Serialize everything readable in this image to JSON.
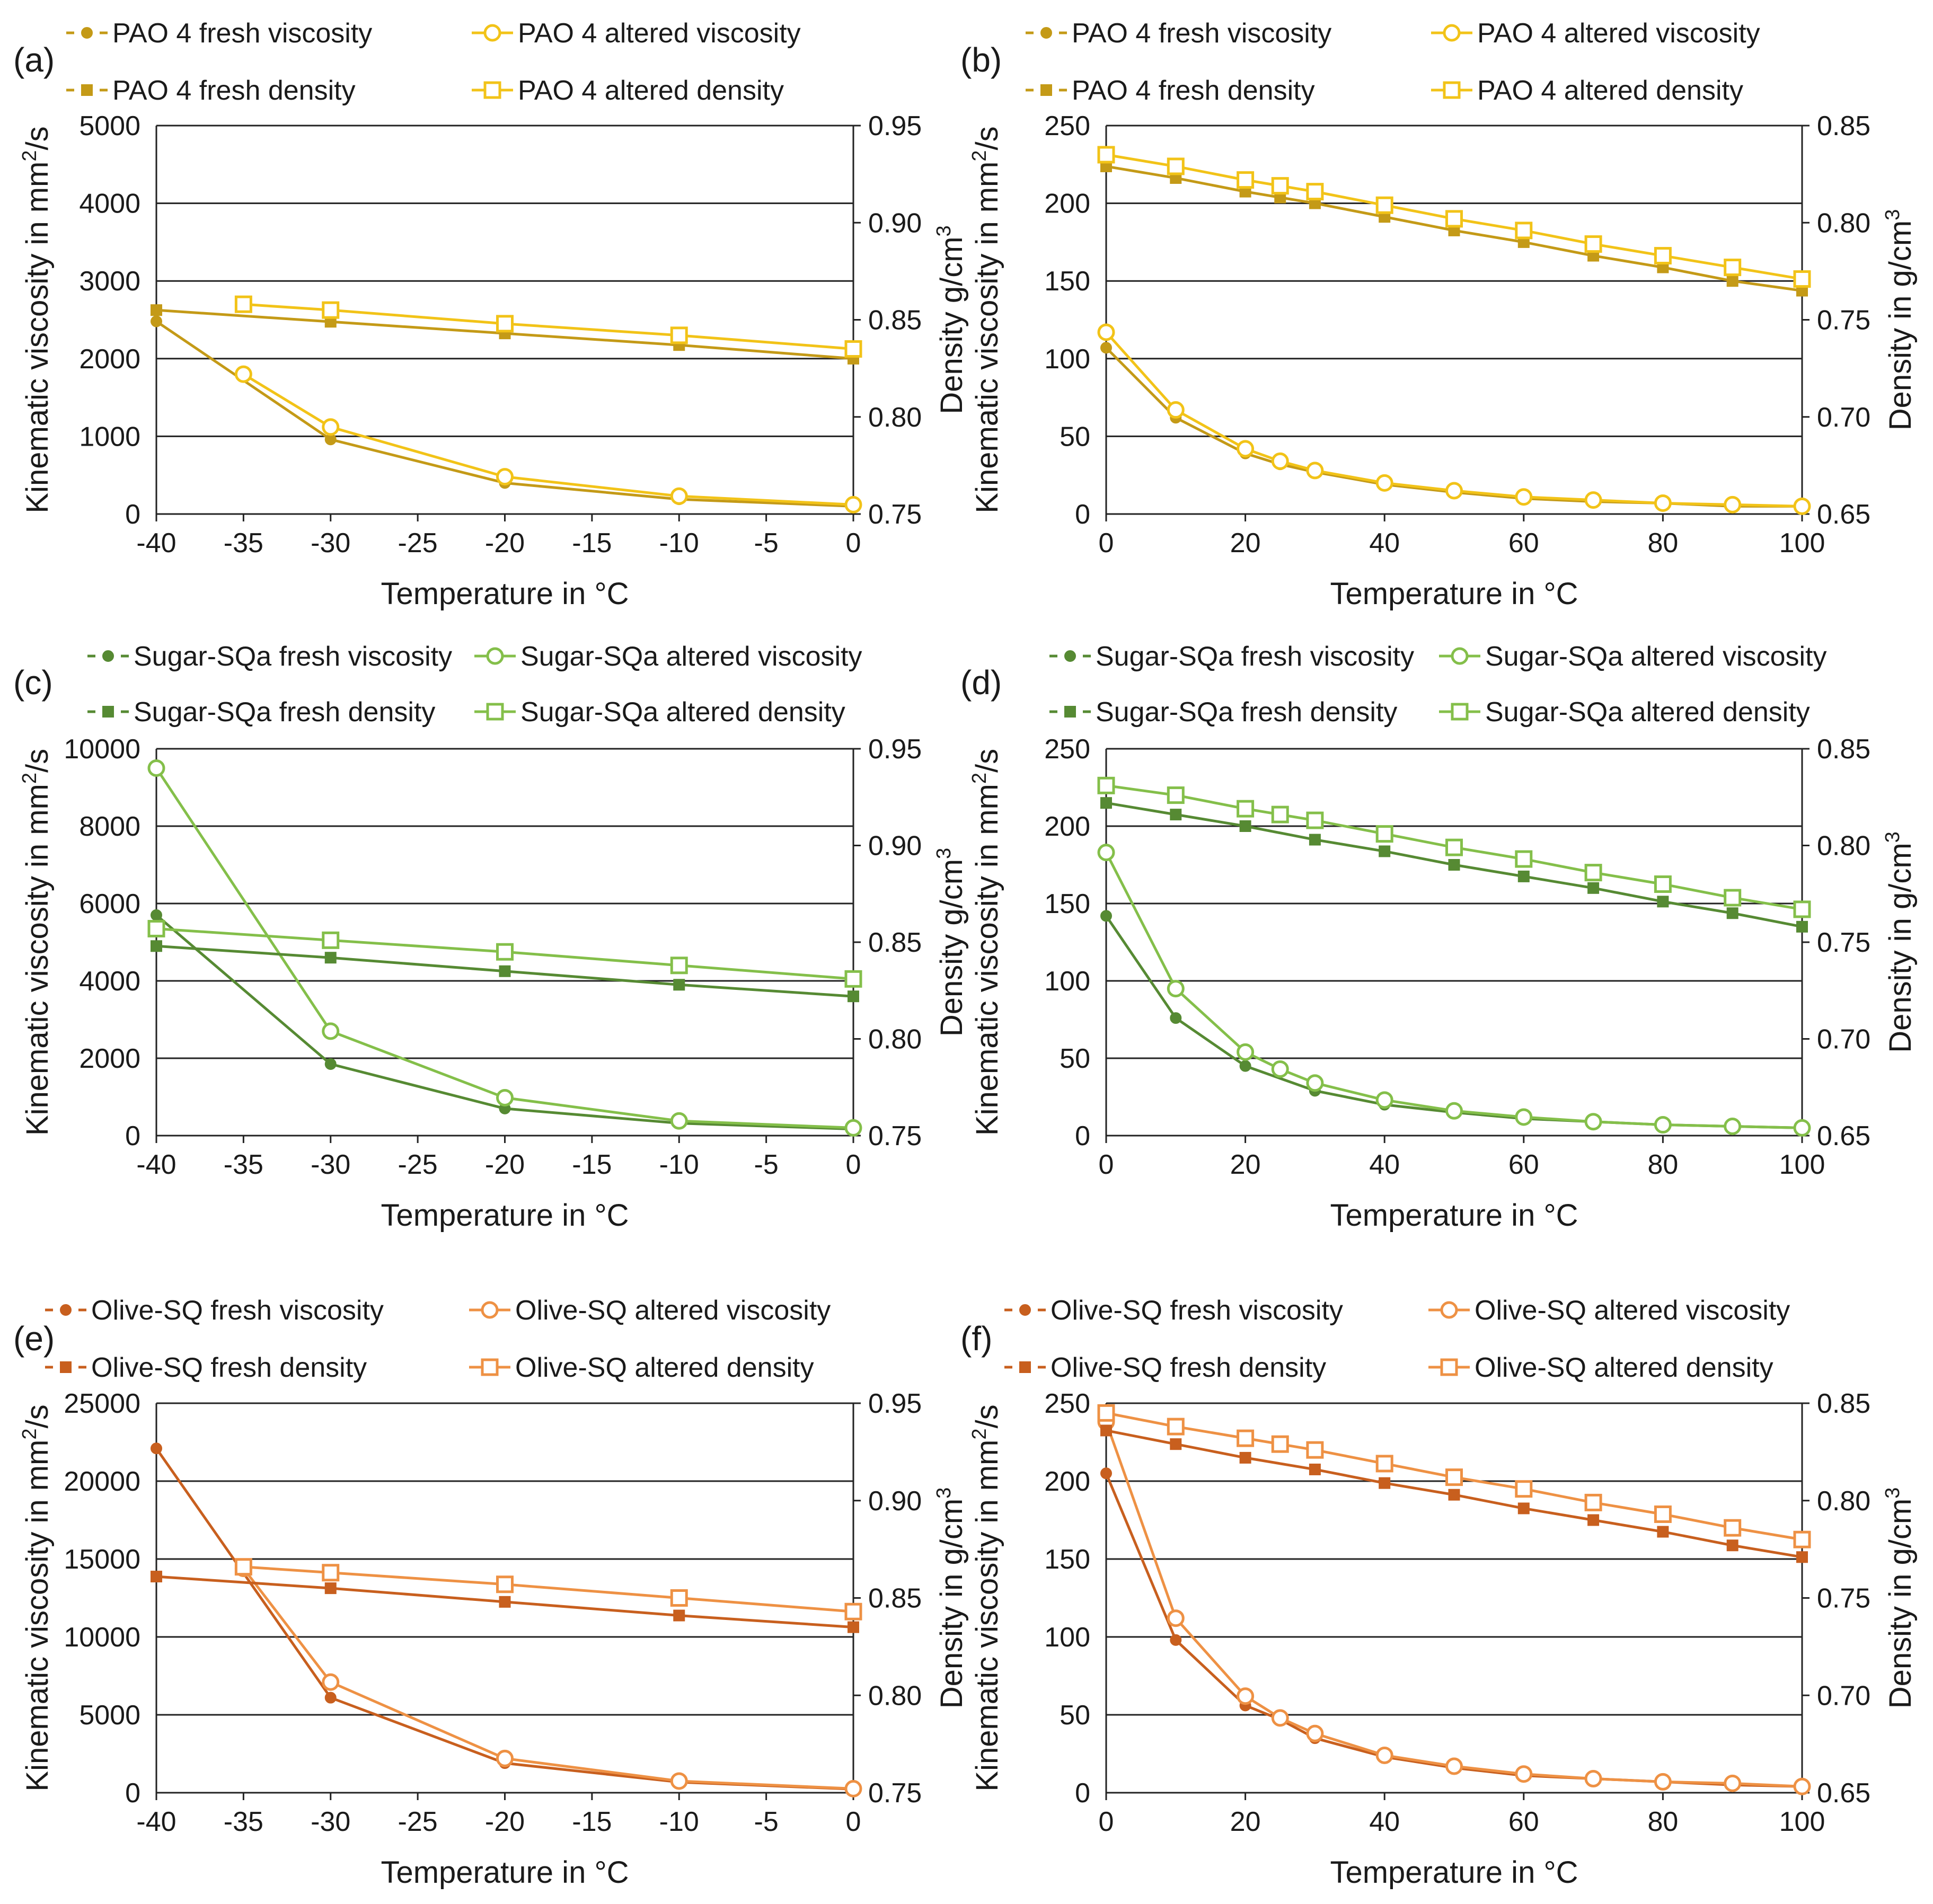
{
  "chart_data": [
    {
      "panel_label": "(a)",
      "type": "line",
      "colors": {
        "fresh": "#C49A17",
        "altered": "#F2C318"
      },
      "xlabel": "Temperature in °C",
      "ylabel": "Kinematic viscosity in mm²/s",
      "ylabel_main": "Kinematic viscosity in mm",
      "ylabel_sup": "2",
      "ylabel_tail": "/s",
      "y2label": "Density g/cm³",
      "y2label_main": "Density g/cm",
      "y2label_sup": "3",
      "xlim": [
        -40,
        0
      ],
      "ylim": [
        0,
        5000
      ],
      "y2lim": [
        0.75,
        0.95
      ],
      "xticks": [
        "-40",
        "-35",
        "-30",
        "-25",
        "-20",
        "-15",
        "-10",
        "-5",
        "0"
      ],
      "yticks": [
        "0",
        "1000",
        "2000",
        "3000",
        "4000",
        "5000"
      ],
      "y2ticks": [
        "0.75",
        "0.80",
        "0.85",
        "0.90",
        "0.95"
      ],
      "series": [
        {
          "name": "PAO 4 fresh viscosity",
          "axis": "left",
          "marker": "dot",
          "style": "fresh",
          "x": [
            -40,
            -30,
            -20,
            -10,
            0
          ],
          "values": [
            2480,
            960,
            400,
            190,
            100
          ]
        },
        {
          "name": "PAO 4 altered viscosity",
          "axis": "left",
          "marker": "circle",
          "style": "altered",
          "x": [
            -35,
            -30,
            -20,
            -10,
            0
          ],
          "values": [
            1800,
            1120,
            480,
            230,
            120
          ]
        },
        {
          "name": "PAO 4 fresh density",
          "axis": "right",
          "marker": "square-filled",
          "style": "fresh",
          "x": [
            -40,
            -30,
            -20,
            -10,
            0
          ],
          "values": [
            0.855,
            0.849,
            0.843,
            0.837,
            0.83
          ]
        },
        {
          "name": "PAO 4 altered density",
          "axis": "right",
          "marker": "square-open",
          "style": "altered",
          "x": [
            -35,
            -30,
            -20,
            -10,
            0
          ],
          "values": [
            0.858,
            0.855,
            0.848,
            0.842,
            0.835
          ]
        }
      ]
    },
    {
      "panel_label": "(b)",
      "type": "line",
      "colors": {
        "fresh": "#C49A17",
        "altered": "#F2C318"
      },
      "xlabel": "Temperature in °C",
      "ylabel": "Kinematic viscosity in mm²/s",
      "ylabel_main": "Kinematic viscosity in mm",
      "ylabel_sup": "2",
      "ylabel_tail": "/s",
      "y2label": "Density in g/cm³",
      "y2label_main": "Density in g/cm",
      "y2label_sup": "3",
      "xlim": [
        0,
        100
      ],
      "ylim": [
        0,
        250
      ],
      "y2lim": [
        0.65,
        0.85
      ],
      "xticks": [
        "0",
        "20",
        "40",
        "60",
        "80",
        "100"
      ],
      "yticks": [
        "0",
        "50",
        "100",
        "150",
        "200",
        "250"
      ],
      "y2ticks": [
        "0.65",
        "0.70",
        "0.75",
        "0.80",
        "0.85"
      ],
      "series": [
        {
          "name": "PAO 4 fresh viscosity",
          "axis": "left",
          "marker": "dot",
          "style": "fresh",
          "x": [
            0,
            10,
            20,
            25,
            30,
            40,
            50,
            60,
            70,
            80,
            90,
            100
          ],
          "values": [
            107,
            62,
            39,
            32,
            27,
            19,
            14,
            10,
            8,
            7,
            5,
            5
          ]
        },
        {
          "name": "PAO 4 altered viscosity",
          "axis": "left",
          "marker": "circle",
          "style": "altered",
          "x": [
            0,
            10,
            20,
            25,
            30,
            40,
            50,
            60,
            70,
            80,
            90,
            100
          ],
          "values": [
            117,
            67,
            42,
            34,
            28,
            20,
            15,
            11,
            9,
            7,
            6,
            5
          ]
        },
        {
          "name": "PAO 4 fresh density",
          "axis": "right",
          "marker": "square-filled",
          "style": "fresh",
          "x": [
            0,
            10,
            20,
            25,
            30,
            40,
            50,
            60,
            70,
            80,
            90,
            100
          ],
          "values": [
            0.829,
            0.823,
            0.816,
            0.813,
            0.81,
            0.803,
            0.796,
            0.79,
            0.783,
            0.777,
            0.77,
            0.765
          ]
        },
        {
          "name": "PAO 4 altered density",
          "axis": "right",
          "marker": "square-open",
          "style": "altered",
          "x": [
            0,
            10,
            20,
            25,
            30,
            40,
            50,
            60,
            70,
            80,
            90,
            100
          ],
          "values": [
            0.835,
            0.829,
            0.822,
            0.819,
            0.816,
            0.809,
            0.802,
            0.796,
            0.789,
            0.783,
            0.777,
            0.771
          ]
        }
      ]
    },
    {
      "panel_label": "(c)",
      "type": "line",
      "colors": {
        "fresh": "#568A33",
        "altered": "#84BF4A"
      },
      "xlabel": "Temperature in °C",
      "ylabel": "Kinematic viscosity in mm²/s",
      "ylabel_main": "Kinematic viscosity in mm",
      "ylabel_sup": "2",
      "ylabel_tail": "/s",
      "y2label": "Density g/cm³",
      "y2label_main": "Density g/cm",
      "y2label_sup": "3",
      "xlim": [
        -40,
        0
      ],
      "ylim": [
        0,
        10000
      ],
      "y2lim": [
        0.75,
        0.95
      ],
      "xticks": [
        "-40",
        "-35",
        "-30",
        "-25",
        "-20",
        "-15",
        "-10",
        "-5",
        "0"
      ],
      "yticks": [
        "0",
        "2000",
        "4000",
        "6000",
        "8000",
        "10000"
      ],
      "y2ticks": [
        "0.75",
        "0.80",
        "0.85",
        "0.90",
        "0.95"
      ],
      "series": [
        {
          "name": "Sugar-SQa fresh viscosity",
          "axis": "left",
          "marker": "dot",
          "style": "fresh",
          "x": [
            -40,
            -30,
            -20,
            -10,
            0
          ],
          "values": [
            5700,
            1850,
            700,
            320,
            170
          ]
        },
        {
          "name": "Sugar-SQa altered viscosity",
          "axis": "left",
          "marker": "circle",
          "style": "altered",
          "x": [
            -40,
            -30,
            -20,
            -10,
            0
          ],
          "values": [
            9500,
            2700,
            980,
            380,
            200
          ]
        },
        {
          "name": "Sugar-SQa fresh density",
          "axis": "right",
          "marker": "square-filled",
          "style": "fresh",
          "x": [
            -40,
            -30,
            -20,
            -10,
            0
          ],
          "values": [
            0.848,
            0.842,
            0.835,
            0.828,
            0.822
          ]
        },
        {
          "name": "Sugar-SQa altered density",
          "axis": "right",
          "marker": "square-open",
          "style": "altered",
          "x": [
            -40,
            -30,
            -20,
            -10,
            0
          ],
          "values": [
            0.857,
            0.851,
            0.845,
            0.838,
            0.831
          ]
        }
      ]
    },
    {
      "panel_label": "(d)",
      "type": "line",
      "colors": {
        "fresh": "#568A33",
        "altered": "#84BF4A"
      },
      "xlabel": "Temperature in °C",
      "ylabel": "Kinematic viscosity in mm²/s",
      "ylabel_main": "Kinematic viscosity in mm",
      "ylabel_sup": "2",
      "ylabel_tail": "/s",
      "y2label": "Density in g/cm³",
      "y2label_main": "Density in g/cm",
      "y2label_sup": "3",
      "xlim": [
        0,
        100
      ],
      "ylim": [
        0,
        250
      ],
      "y2lim": [
        0.65,
        0.85
      ],
      "xticks": [
        "0",
        "20",
        "40",
        "60",
        "80",
        "100"
      ],
      "yticks": [
        "0",
        "50",
        "100",
        "150",
        "200",
        "250"
      ],
      "y2ticks": [
        "0.65",
        "0.70",
        "0.75",
        "0.80",
        "0.85"
      ],
      "series": [
        {
          "name": "Sugar-SQa fresh viscosity",
          "axis": "left",
          "marker": "dot",
          "style": "fresh",
          "x": [
            0,
            10,
            20,
            30,
            40,
            50,
            60,
            70,
            80,
            90,
            100
          ],
          "values": [
            142,
            76,
            45,
            29,
            20,
            15,
            11,
            9,
            7,
            6,
            5
          ]
        },
        {
          "name": "Sugar-SQa altered viscosity",
          "axis": "left",
          "marker": "circle",
          "style": "altered",
          "x": [
            0,
            10,
            20,
            25,
            30,
            40,
            50,
            60,
            70,
            80,
            90,
            100
          ],
          "values": [
            183,
            95,
            54,
            43,
            34,
            23,
            16,
            12,
            9,
            7,
            6,
            5
          ]
        },
        {
          "name": "Sugar-SQa fresh density",
          "axis": "right",
          "marker": "square-filled",
          "style": "fresh",
          "x": [
            0,
            10,
            20,
            30,
            40,
            50,
            60,
            70,
            80,
            90,
            100
          ],
          "values": [
            0.822,
            0.816,
            0.81,
            0.803,
            0.797,
            0.79,
            0.784,
            0.778,
            0.771,
            0.765,
            0.758
          ]
        },
        {
          "name": "Sugar-SQa altered density",
          "axis": "right",
          "marker": "square-open",
          "style": "altered",
          "x": [
            0,
            10,
            20,
            25,
            30,
            40,
            50,
            60,
            70,
            80,
            90,
            100
          ],
          "values": [
            0.831,
            0.826,
            0.819,
            0.816,
            0.813,
            0.806,
            0.799,
            0.793,
            0.786,
            0.78,
            0.773,
            0.767
          ]
        }
      ]
    },
    {
      "panel_label": "(e)",
      "type": "line",
      "colors": {
        "fresh": "#C85F1E",
        "altered": "#EE9144"
      },
      "xlabel": "Temperature in °C",
      "ylabel": "Kinematic viscosity in mm²/s",
      "ylabel_main": "Kinematic viscosity in mm",
      "ylabel_sup": "2",
      "ylabel_tail": "/s",
      "y2label": "Density in g/cm³",
      "y2label_main": "Density in g/cm",
      "y2label_sup": "3",
      "xlim": [
        -40,
        0
      ],
      "ylim": [
        0,
        25000
      ],
      "y2lim": [
        0.75,
        0.95
      ],
      "xticks": [
        "-40",
        "-35",
        "-30",
        "-25",
        "-20",
        "-15",
        "-10",
        "-5",
        "0"
      ],
      "yticks": [
        "0",
        "5000",
        "10000",
        "15000",
        "20000",
        "25000"
      ],
      "y2ticks": [
        "0.75",
        "0.80",
        "0.85",
        "0.90",
        "0.95"
      ],
      "series": [
        {
          "name": "Olive-SQ fresh viscosity",
          "axis": "left",
          "marker": "dot",
          "style": "fresh",
          "x": [
            -40,
            -30,
            -20,
            -10,
            0
          ],
          "values": [
            22100,
            6100,
            1900,
            680,
            230
          ]
        },
        {
          "name": "Olive-SQ altered viscosity",
          "axis": "left",
          "marker": "circle",
          "style": "altered",
          "x": [
            -35,
            -30,
            -20,
            -10,
            0
          ],
          "values": [
            14400,
            7100,
            2200,
            750,
            260
          ]
        },
        {
          "name": "Olive-SQ fresh density",
          "axis": "right",
          "marker": "square-filled",
          "style": "fresh",
          "x": [
            -40,
            -30,
            -20,
            -10,
            0
          ],
          "values": [
            0.861,
            0.855,
            0.848,
            0.841,
            0.835
          ]
        },
        {
          "name": "Olive-SQ altered density",
          "axis": "right",
          "marker": "square-open",
          "style": "altered",
          "x": [
            -35,
            -30,
            -20,
            -10,
            0
          ],
          "values": [
            0.866,
            0.863,
            0.857,
            0.85,
            0.843
          ]
        }
      ]
    },
    {
      "panel_label": "(f)",
      "type": "line",
      "colors": {
        "fresh": "#C85F1E",
        "altered": "#EE9144"
      },
      "xlabel": "Temperature in °C",
      "ylabel": "Kinematic viscosity in mm²/s",
      "ylabel_main": "Kinematic viscosity in mm",
      "ylabel_sup": "2",
      "ylabel_tail": "/s",
      "y2label": "Density in g/cm³",
      "y2label_main": "Density in g/cm",
      "y2label_sup": "3",
      "xlim": [
        0,
        100
      ],
      "ylim": [
        0,
        250
      ],
      "y2lim": [
        0.65,
        0.85
      ],
      "xticks": [
        "0",
        "20",
        "40",
        "60",
        "80",
        "100"
      ],
      "yticks": [
        "0",
        "50",
        "100",
        "150",
        "200",
        "250"
      ],
      "y2ticks": [
        "0.65",
        "0.70",
        "0.75",
        "0.80",
        "0.85"
      ],
      "series": [
        {
          "name": "Olive-SQ fresh viscosity",
          "axis": "left",
          "marker": "dot",
          "style": "fresh",
          "x": [
            0,
            10,
            20,
            25,
            30,
            40,
            50,
            60,
            70,
            80,
            90,
            100
          ],
          "values": [
            205,
            98,
            56,
            47,
            35,
            23,
            16,
            11,
            9,
            7,
            5,
            4
          ]
        },
        {
          "name": "Olive-SQ altered viscosity",
          "axis": "left",
          "marker": "circle",
          "style": "altered",
          "x": [
            0,
            10,
            20,
            25,
            30,
            40,
            50,
            60,
            70,
            80,
            90,
            100
          ],
          "values": [
            238,
            112,
            62,
            48,
            38,
            24,
            17,
            12,
            9,
            7,
            6,
            4
          ]
        },
        {
          "name": "Olive-SQ fresh density",
          "axis": "right",
          "marker": "square-filled",
          "style": "fresh",
          "x": [
            0,
            10,
            20,
            30,
            40,
            50,
            60,
            70,
            80,
            90,
            100
          ],
          "values": [
            0.836,
            0.829,
            0.822,
            0.816,
            0.809,
            0.803,
            0.796,
            0.79,
            0.784,
            0.777,
            0.771
          ]
        },
        {
          "name": "Olive-SQ altered density",
          "axis": "right",
          "marker": "square-open",
          "style": "altered",
          "x": [
            0,
            10,
            20,
            25,
            30,
            40,
            50,
            60,
            70,
            80,
            90,
            100
          ],
          "values": [
            0.845,
            0.838,
            0.832,
            0.829,
            0.826,
            0.819,
            0.812,
            0.806,
            0.799,
            0.793,
            0.786,
            0.78
          ]
        }
      ]
    }
  ]
}
